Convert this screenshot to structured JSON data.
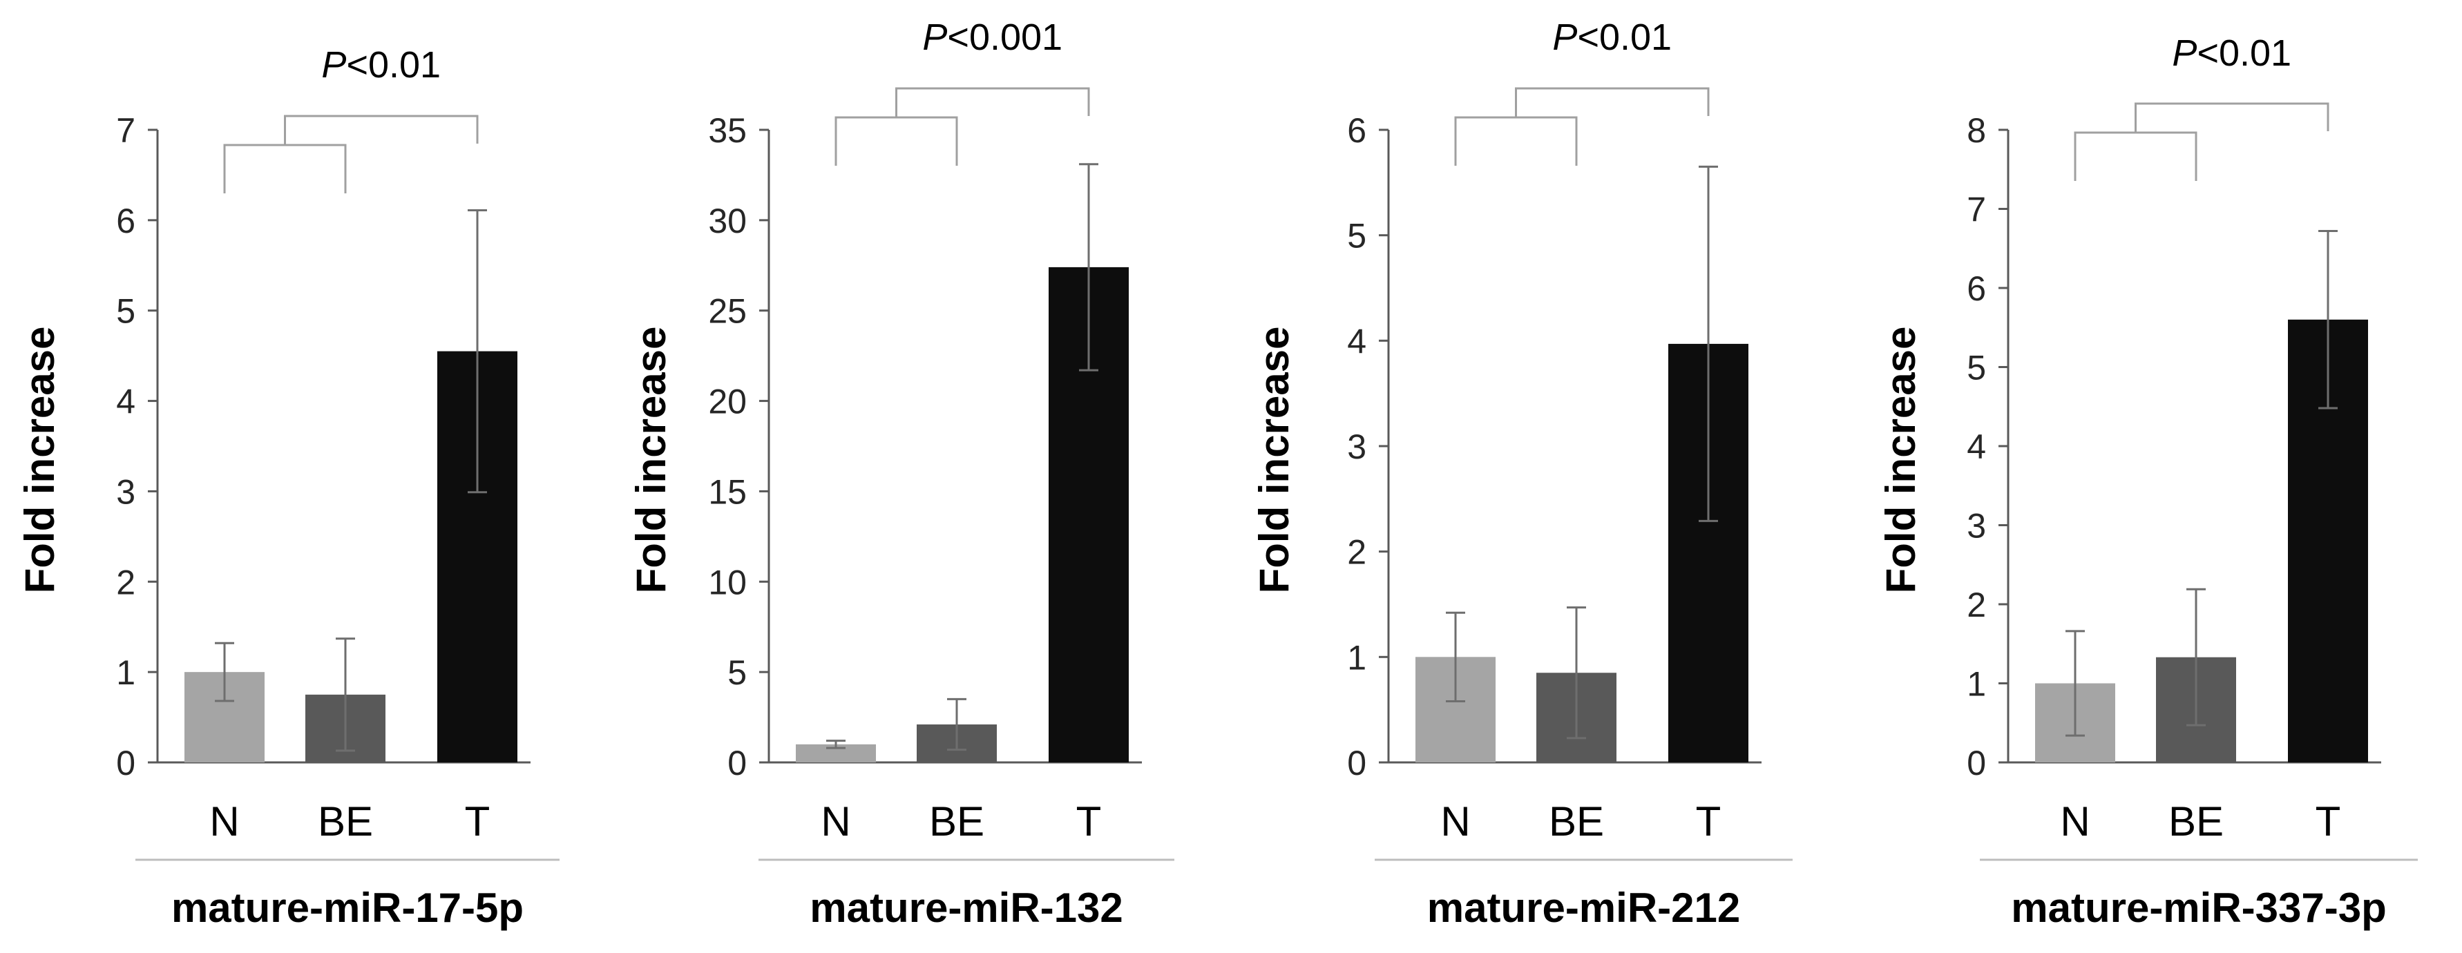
{
  "colors": {
    "N": "#a5a5a5",
    "BE": "#595959",
    "T": "#0d0d0d",
    "axis": "#595959",
    "error": "#6e6e6e",
    "bracket": "#a0a0a0",
    "underline": "#bdbdbd"
  },
  "chart_data": [
    {
      "type": "bar",
      "title": "mature-miR-17-5p",
      "xlabel": "",
      "ylabel": "Fold increase",
      "categories": [
        "N",
        "BE",
        "T"
      ],
      "values": [
        1.0,
        0.75,
        4.55
      ],
      "errors": [
        0.32,
        0.62,
        1.56
      ],
      "ylim": [
        0,
        7
      ],
      "yticks": [
        0,
        1,
        2,
        3,
        4,
        5,
        6,
        7
      ],
      "significance": {
        "prefix": "P",
        "text": "<0.01"
      }
    },
    {
      "type": "bar",
      "title": "mature-miR-132",
      "xlabel": "",
      "ylabel": "Fold increase",
      "categories": [
        "N",
        "BE",
        "T"
      ],
      "values": [
        1.0,
        2.1,
        27.4
      ],
      "errors": [
        0.2,
        1.4,
        5.7
      ],
      "ylim": [
        0,
        35
      ],
      "yticks": [
        0,
        5,
        10,
        15,
        20,
        25,
        30,
        35
      ],
      "significance": {
        "prefix": "P",
        "text": "<0.001"
      }
    },
    {
      "type": "bar",
      "title": "mature-miR-212",
      "xlabel": "",
      "ylabel": "Fold increase",
      "categories": [
        "N",
        "BE",
        "T"
      ],
      "values": [
        1.0,
        0.85,
        3.97
      ],
      "errors": [
        0.42,
        0.62,
        1.68
      ],
      "ylim": [
        0,
        6
      ],
      "yticks": [
        0,
        1,
        2,
        3,
        4,
        5,
        6
      ],
      "significance": {
        "prefix": "P",
        "text": "<0.01"
      }
    },
    {
      "type": "bar",
      "title": "mature-miR-337-3p",
      "xlabel": "",
      "ylabel": "Fold increase",
      "categories": [
        "N",
        "BE",
        "T"
      ],
      "values": [
        1.0,
        1.33,
        5.6
      ],
      "errors": [
        0.66,
        0.86,
        1.12
      ],
      "ylim": [
        0,
        8
      ],
      "yticks": [
        0,
        1,
        2,
        3,
        4,
        5,
        6,
        7,
        8
      ],
      "significance": {
        "prefix": "P",
        "text": "<0.01"
      }
    }
  ]
}
